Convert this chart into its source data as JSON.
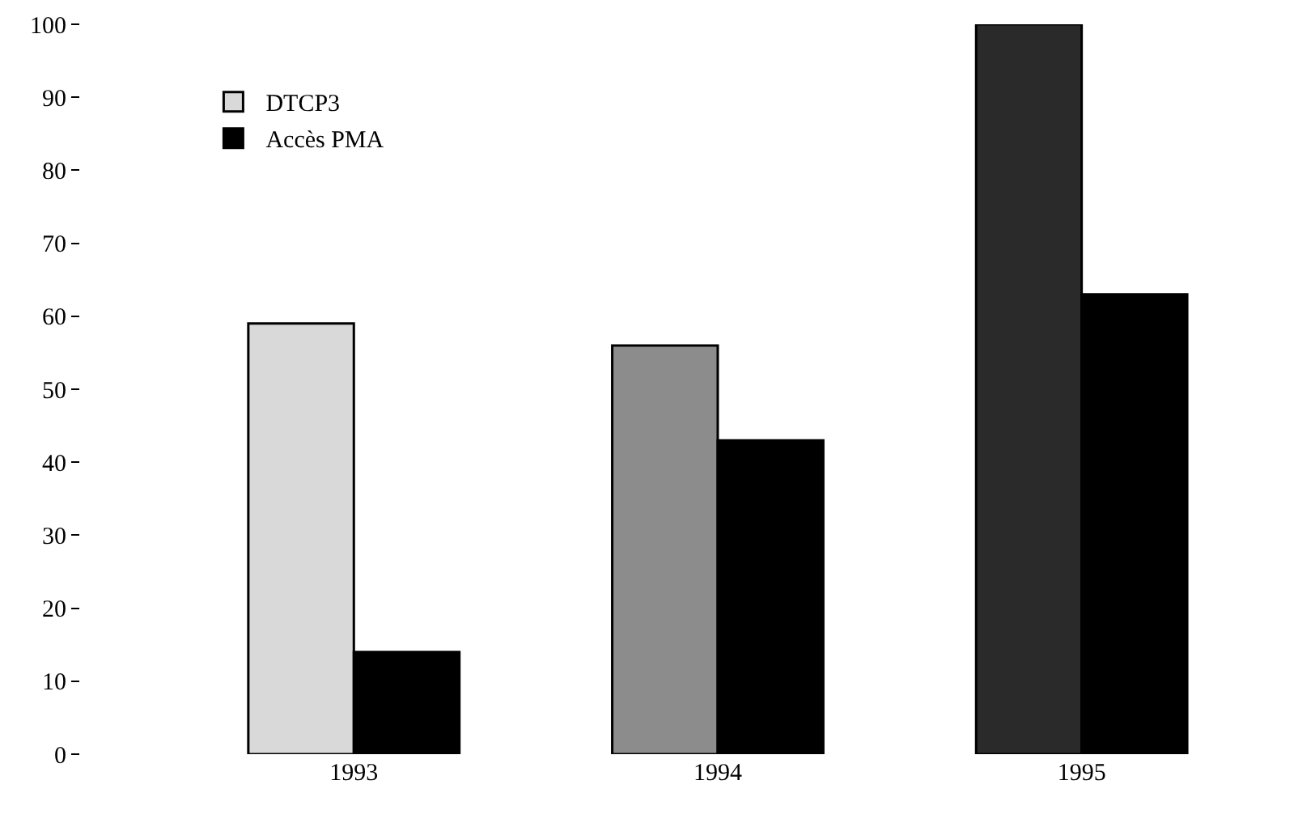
{
  "chart_data": {
    "type": "bar",
    "categories": [
      "1993",
      "1994",
      "1995"
    ],
    "series": [
      {
        "name": "DTCP3",
        "colors": [
          "#d9d9d9",
          "#8c8c8c",
          "#2a2a2a"
        ],
        "values": [
          59,
          56,
          100
        ]
      },
      {
        "name": "Accès PMA",
        "color": "#000000",
        "values": [
          14,
          43,
          63
        ]
      }
    ],
    "ylim": [
      0,
      100
    ],
    "yticks": [
      0,
      10,
      20,
      30,
      40,
      50,
      60,
      70,
      80,
      90,
      100
    ],
    "grid": false,
    "legend": "top left"
  }
}
